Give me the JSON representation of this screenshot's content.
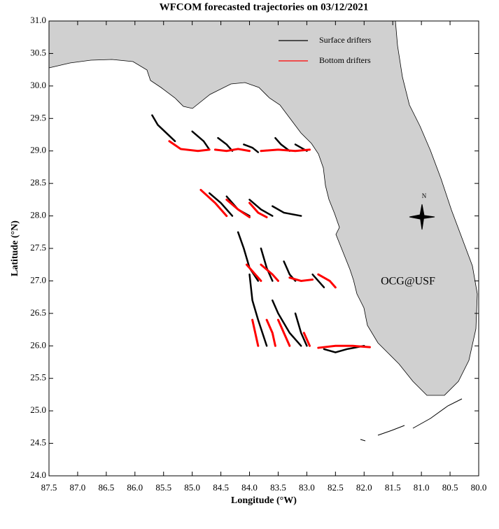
{
  "chart_data": {
    "type": "trajectory-map",
    "title": "WFCOM forecasted trajectories on 03/12/2021",
    "x_label": "Longitude (°W)",
    "y_label": "Latitude (°N)",
    "xlim": [
      87.5,
      80.0
    ],
    "ylim": [
      24.0,
      31.0
    ],
    "xticks": [
      87.5,
      {
        "value": 87,
        "label": "87.0"
      },
      86.5,
      {
        "value": 86,
        "label": "86.0"
      },
      85.5,
      {
        "value": 85,
        "label": "85.0"
      },
      84.5,
      {
        "value": 84,
        "label": "84.0"
      },
      83.5,
      {
        "value": 83,
        "label": "83.0"
      },
      82.5,
      {
        "value": 82,
        "label": "82.0"
      },
      81.5,
      {
        "value": 81,
        "label": "81.0"
      },
      80.5,
      {
        "value": 80,
        "label": "80.0"
      }
    ],
    "yticks": [
      {
        "value": 24,
        "label": "24.0"
      },
      24.5,
      {
        "value": 25,
        "label": "25.0"
      },
      25.5,
      {
        "value": 26,
        "label": "26.0"
      },
      26.5,
      {
        "value": 27,
        "label": "27.0"
      },
      27.5,
      {
        "value": 28,
        "label": "28.0"
      },
      28.5,
      {
        "value": 29,
        "label": "29.0"
      },
      29.5,
      {
        "value": 30,
        "label": "30.0"
      },
      30.5,
      {
        "value": 31,
        "label": "31.0"
      }
    ],
    "legend": "top right",
    "annotation": "OCG@USF",
    "annotation_color": "#e00000",
    "compass_label": "N",
    "series": [
      {
        "name": "Surface drifters",
        "color": "#000000",
        "tracks": [
          {
            "x": [
              85.7,
              85.6,
              85.3
            ],
            "y": [
              29.55,
              29.4,
              29.15
            ]
          },
          {
            "x": [
              85.0,
              84.8,
              84.7
            ],
            "y": [
              29.3,
              29.15,
              29.02
            ]
          },
          {
            "x": [
              84.55,
              84.4,
              84.3
            ],
            "y": [
              29.2,
              29.1,
              29.0
            ]
          },
          {
            "x": [
              84.1,
              83.95,
              83.85
            ],
            "y": [
              29.1,
              29.05,
              28.98
            ]
          },
          {
            "x": [
              83.55,
              83.45,
              83.3
            ],
            "y": [
              29.2,
              29.1,
              29.0
            ]
          },
          {
            "x": [
              83.2,
              83.1,
              83.0
            ],
            "y": [
              29.1,
              29.05,
              29.0
            ]
          },
          {
            "x": [
              84.7,
              84.5,
              84.3
            ],
            "y": [
              28.35,
              28.2,
              28.0
            ]
          },
          {
            "x": [
              84.4,
              84.2,
              84.0
            ],
            "y": [
              28.3,
              28.1,
              28.0
            ]
          },
          {
            "x": [
              84.0,
              83.8,
              83.6
            ],
            "y": [
              28.25,
              28.1,
              28.0
            ]
          },
          {
            "x": [
              83.6,
              83.4,
              83.1
            ],
            "y": [
              28.15,
              28.05,
              28.0
            ]
          },
          {
            "x": [
              84.2,
              84.1,
              84.0,
              83.85
            ],
            "y": [
              27.75,
              27.5,
              27.2,
              27.0
            ]
          },
          {
            "x": [
              83.8,
              83.7,
              83.6
            ],
            "y": [
              27.5,
              27.2,
              27.0
            ]
          },
          {
            "x": [
              83.4,
              83.3,
              83.2
            ],
            "y": [
              27.3,
              27.1,
              27.0
            ]
          },
          {
            "x": [
              82.9,
              82.8,
              82.7
            ],
            "y": [
              27.1,
              27.0,
              26.9
            ]
          },
          {
            "x": [
              84.0,
              83.95,
              83.85,
              83.7
            ],
            "y": [
              27.1,
              26.7,
              26.4,
              26.0
            ]
          },
          {
            "x": [
              83.6,
              83.5,
              83.3,
              83.1
            ],
            "y": [
              26.7,
              26.5,
              26.2,
              26.0
            ]
          },
          {
            "x": [
              83.2,
              83.1,
              83.0
            ],
            "y": [
              26.5,
              26.2,
              26.0
            ]
          },
          {
            "x": [
              82.7,
              82.5,
              82.3,
              82.0
            ],
            "y": [
              25.95,
              25.9,
              25.95,
              26.0
            ]
          }
        ]
      },
      {
        "name": "Bottom drifters",
        "color": "#ff0000",
        "tracks": [
          {
            "x": [
              85.4,
              85.2,
              84.9,
              84.7
            ],
            "y": [
              29.15,
              29.03,
              29.0,
              29.02
            ]
          },
          {
            "x": [
              84.6,
              84.4,
              84.2,
              84.0
            ],
            "y": [
              29.02,
              29.0,
              29.03,
              29.0
            ]
          },
          {
            "x": [
              83.8,
              83.5,
              83.2,
              82.95
            ],
            "y": [
              29.0,
              29.02,
              29.0,
              29.02
            ]
          },
          {
            "x": [
              84.85,
              84.6,
              84.4
            ],
            "y": [
              28.4,
              28.2,
              28.0
            ]
          },
          {
            "x": [
              84.4,
              84.2,
              84.0
            ],
            "y": [
              28.25,
              28.1,
              27.98
            ]
          },
          {
            "x": [
              84.0,
              83.85,
              83.7
            ],
            "y": [
              28.2,
              28.05,
              27.98
            ]
          },
          {
            "x": [
              84.05,
              83.9,
              83.8
            ],
            "y": [
              27.25,
              27.1,
              27.0
            ]
          },
          {
            "x": [
              83.8,
              83.6,
              83.5
            ],
            "y": [
              27.25,
              27.1,
              27.0
            ]
          },
          {
            "x": [
              83.3,
              83.1,
              82.9
            ],
            "y": [
              27.05,
              27.0,
              27.02
            ]
          },
          {
            "x": [
              82.8,
              82.6,
              82.5
            ],
            "y": [
              27.1,
              27.0,
              26.9
            ]
          },
          {
            "x": [
              83.95,
              83.9,
              83.85
            ],
            "y": [
              26.4,
              26.2,
              26.0
            ]
          },
          {
            "x": [
              83.7,
              83.6,
              83.55
            ],
            "y": [
              26.4,
              26.2,
              26.0
            ]
          },
          {
            "x": [
              83.5,
              83.4,
              83.3
            ],
            "y": [
              26.4,
              26.2,
              26.0
            ]
          },
          {
            "x": [
              83.05,
              83.0,
              82.95
            ],
            "y": [
              26.2,
              26.1,
              26.0
            ]
          },
          {
            "x": [
              82.8,
              82.5,
              82.2,
              81.9
            ],
            "y": [
              25.97,
              26.0,
              26.0,
              25.98
            ]
          }
        ]
      }
    ]
  }
}
